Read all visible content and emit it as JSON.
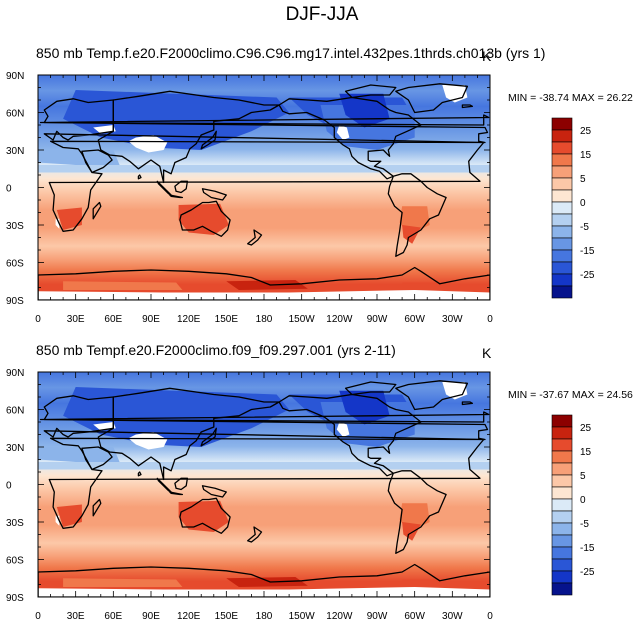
{
  "main_title": "DJF-JJA",
  "panels": [
    {
      "title": "850 mb Temp.f.e20.F2000climo.C96.C96.mg17.intel.432pes.1thrds.ch013b (yrs 1)",
      "units": "K",
      "minmax": "MIN = -38.74  MAX =  26.22"
    },
    {
      "title": "850 mb Tempf.e20.F2000climo.f09_f09.297.001 (yrs 2-11)",
      "units": "K",
      "minmax": "MIN = -37.67  MAX =  24.56"
    }
  ],
  "lat_ticks": [
    "90N",
    "60N",
    "30N",
    "0",
    "30S",
    "60S",
    "90S"
  ],
  "lon_ticks": [
    "0",
    "30E",
    "60E",
    "90E",
    "120E",
    "150E",
    "180",
    "150W",
    "120W",
    "90W",
    "60W",
    "30W",
    "0"
  ],
  "colorbar": {
    "labels": [
      "25",
      "15",
      "5",
      "0",
      "-5",
      "-15",
      "-25"
    ],
    "colors": [
      "#8c0000",
      "#c8230f",
      "#e64b2d",
      "#f0784b",
      "#f7a078",
      "#fcc8a8",
      "#fde6d2",
      "#dbeaf7",
      "#b4d0f0",
      "#8cb4ea",
      "#6896e4",
      "#4676df",
      "#2a56d6",
      "#1436c8",
      "#06138c"
    ]
  },
  "chart_data": {
    "type": "heatmap",
    "title": "DJF-JJA",
    "units": "K",
    "projection": "cylindrical equidistant, 0 to 360 longitude",
    "color_levels": [
      -25,
      -20,
      -15,
      -10,
      -5,
      -2,
      0,
      2,
      5,
      10,
      15,
      20,
      25
    ],
    "colors": [
      "#06138c",
      "#1436c8",
      "#2a56d6",
      "#4676df",
      "#6896e4",
      "#8cb4ea",
      "#b4d0f0",
      "#dbeaf7",
      "#fde6d2",
      "#fcc8a8",
      "#f7a078",
      "#f0784b",
      "#e64b2d",
      "#c8230f",
      "#8c0000"
    ],
    "panels": [
      {
        "case": "e20.F2000climo.C96.C96.mg17.intel.432pes.1thrds.ch013b",
        "years": "yrs 1",
        "min": -38.74,
        "max": 26.22
      },
      {
        "case": "e20.F2000climo.f09_f09.297.001",
        "years": "yrs 2-11",
        "min": -37.67,
        "max": 24.56
      }
    ]
  }
}
